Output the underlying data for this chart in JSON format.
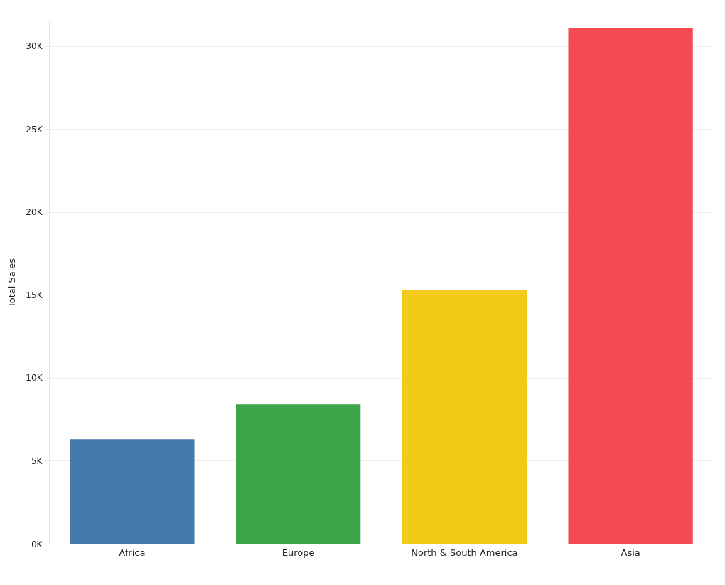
{
  "chart_data": {
    "type": "bar",
    "ylabel": "Total Sales",
    "categories": [
      "Africa",
      "Europe",
      "North & South America",
      "Asia"
    ],
    "values": [
      6300,
      8400,
      15300,
      31100
    ],
    "colors": [
      "#4479ab",
      "#3ba547",
      "#f2ca18",
      "#f24b54"
    ],
    "ylim": [
      0,
      31500
    ],
    "yticks": [
      {
        "value": 0,
        "label": "0K"
      },
      {
        "value": 5000,
        "label": "5K"
      },
      {
        "value": 10000,
        "label": "10K"
      },
      {
        "value": 15000,
        "label": "15K"
      },
      {
        "value": 20000,
        "label": "20K"
      },
      {
        "value": 25000,
        "label": "25K"
      },
      {
        "value": 30000,
        "label": "30K"
      }
    ],
    "grid": "y"
  }
}
